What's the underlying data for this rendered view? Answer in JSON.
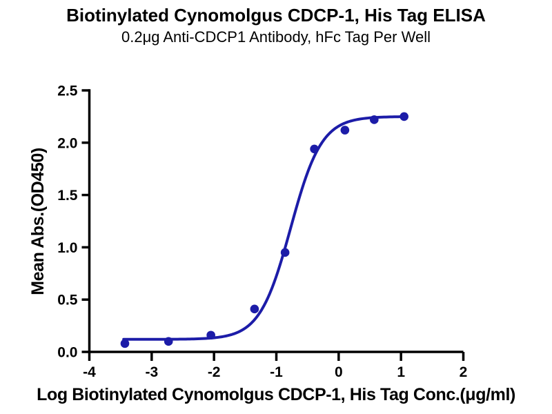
{
  "chart_data": {
    "type": "scatter",
    "title": "Biotinylated Cynomolgus CDCP-1, His Tag ELISA",
    "subtitle": "0.2μg Anti-CDCP1 Antibody, hFc Tag Per Well",
    "xlabel": "Log Biotinylated Cynomolgus CDCP-1, His Tag Conc.(μg/ml)",
    "ylabel": "Mean Abs.(OD450)",
    "xlim": [
      -4,
      2
    ],
    "ylim": [
      0,
      2.5
    ],
    "x_tick_labels": [
      "-4",
      "-3",
      "-2",
      "-1",
      "0",
      "1",
      "2"
    ],
    "y_tick_labels": [
      "0.0",
      "0.5",
      "1.0",
      "1.5",
      "2.0",
      "2.5"
    ],
    "grid": false,
    "legend_position": "none",
    "axis_color": "#000000",
    "series": [
      {
        "name": "Biotinylated Cynomolgus CDCP-1, His Tag data points",
        "type": "scatter",
        "marker": "circle",
        "color": "#1c1ca8",
        "points": [
          {
            "x": -3.43,
            "y": 0.08
          },
          {
            "x": -2.73,
            "y": 0.1
          },
          {
            "x": -2.05,
            "y": 0.16
          },
          {
            "x": -1.35,
            "y": 0.41
          },
          {
            "x": -0.86,
            "y": 0.95
          },
          {
            "x": -0.39,
            "y": 1.94
          },
          {
            "x": 0.1,
            "y": 2.12
          },
          {
            "x": 0.57,
            "y": 2.22
          },
          {
            "x": 1.05,
            "y": 2.25
          }
        ]
      },
      {
        "name": "4PL sigmoidal fit curve",
        "type": "line",
        "color": "#1c1ca8",
        "fit": {
          "model": "4PL",
          "bottom": 0.12,
          "top": 2.25,
          "logEC50": -0.77,
          "hill": 1.75
        },
        "x_range": [
          -3.45,
          1.05
        ]
      }
    ]
  }
}
